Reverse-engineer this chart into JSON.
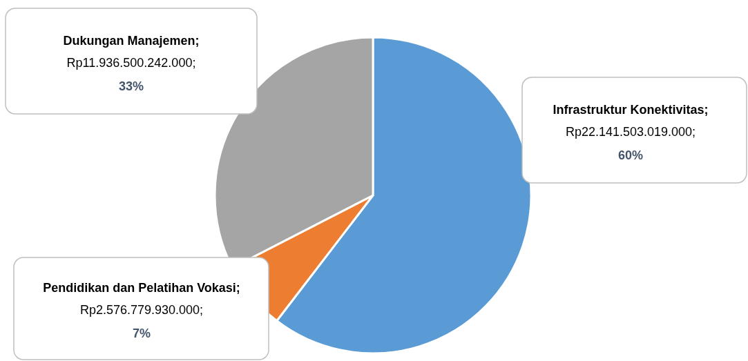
{
  "chart_data": {
    "type": "pie",
    "categories": [
      "Infrastruktur Konektivitas",
      "Pendidikan dan Pelatihan Vokasi",
      "Dukungan Manajemen"
    ],
    "values": [
      22141503019000,
      2576779930000,
      11936500242000
    ],
    "colors": [
      "#5b9bd5",
      "#ed7d31",
      "#a5a5a5"
    ],
    "value_labels": [
      "; Rp22.141.503.019.000; 60%",
      "; Rp2.576.779.930.000; 7%",
      "; Rp11.936.500.242.000; 33%"
    ]
  }
}
